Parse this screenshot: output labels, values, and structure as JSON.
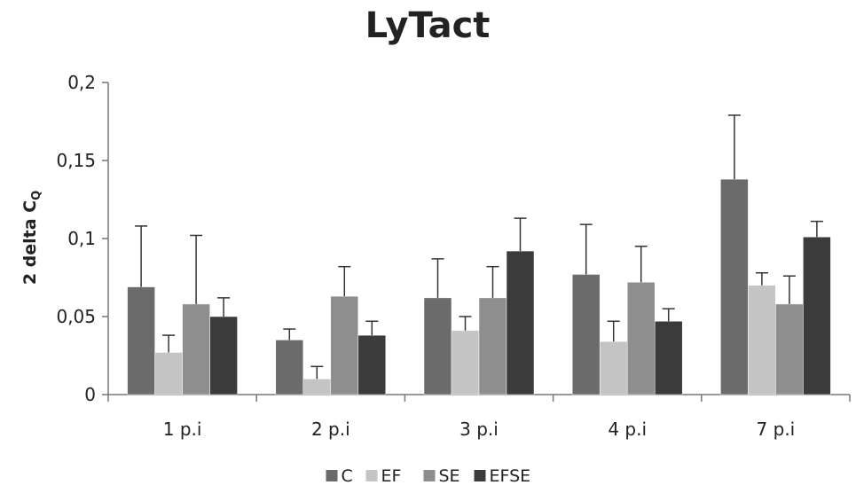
{
  "chart_data": {
    "type": "bar",
    "title": "LyTact",
    "ylabel_main": "2 delta C",
    "ylabel_sub": "Q",
    "xlabel": "",
    "categories": [
      "1 p.i",
      "2 p.i",
      "3 p.i",
      "4 p.i",
      "7 p.i"
    ],
    "ylim": [
      0,
      0.2
    ],
    "yticks": [
      0,
      0.05,
      0.1,
      0.15,
      0.2
    ],
    "ytick_labels": [
      "0",
      "0,05",
      "0,1",
      "0,15",
      "0,2"
    ],
    "grid": false,
    "legend_position": "bottom",
    "series": [
      {
        "name": "C",
        "color": "#6b6b6b",
        "values": [
          0.069,
          0.035,
          0.062,
          0.077,
          0.138
        ],
        "errors": [
          0.039,
          0.007,
          0.025,
          0.032,
          0.041
        ]
      },
      {
        "name": "EF",
        "color": "#c4c4c4",
        "values": [
          0.027,
          0.01,
          0.041,
          0.034,
          0.07
        ],
        "errors": [
          0.011,
          0.008,
          0.009,
          0.013,
          0.008
        ]
      },
      {
        "name": "SE",
        "color": "#8e8e8e",
        "values": [
          0.058,
          0.063,
          0.062,
          0.072,
          0.058
        ],
        "errors": [
          0.044,
          0.019,
          0.02,
          0.023,
          0.018
        ]
      },
      {
        "name": "EFSE",
        "color": "#3b3b3b",
        "values": [
          0.05,
          0.038,
          0.092,
          0.047,
          0.101
        ],
        "errors": [
          0.012,
          0.009,
          0.021,
          0.008,
          0.01
        ]
      }
    ]
  }
}
